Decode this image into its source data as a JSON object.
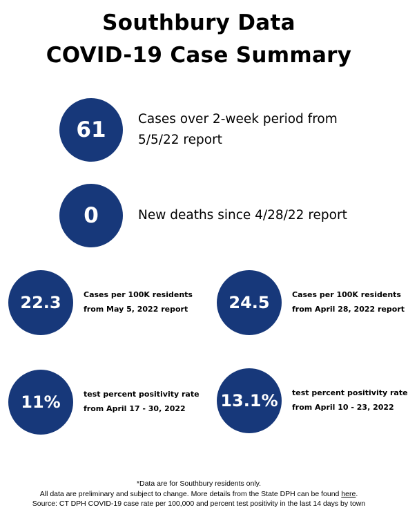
{
  "title": {
    "line1": "Southbury Data",
    "line2": "COVID-19 Case Summary"
  },
  "stats": {
    "cases": {
      "value": "61",
      "label_line1": "Cases over 2-week period from",
      "label_line2": "5/5/22 report"
    },
    "deaths": {
      "value": "0",
      "label": "New deaths since 4/28/22 report"
    },
    "rate_current": {
      "value": "22.3",
      "label_line1": "Cases per 100K residents",
      "label_line2": "from May 5, 2022 report"
    },
    "rate_previous": {
      "value": "24.5",
      "label_line1": "Cases per 100K residents",
      "label_line2": "from April 28, 2022 report"
    },
    "positivity_current": {
      "value": "11%",
      "label_line1": "test percent positivity rate",
      "label_line2": "from April 17 - 30, 2022"
    },
    "positivity_previous": {
      "value": "13.1%",
      "label_line1": "test percent positivity rate",
      "label_line2": "from April 10 - 23, 2022"
    }
  },
  "footer": {
    "line1": "*Data are for Southbury residents only.",
    "line2_prefix": "All data are preliminary and subject to change. More details from the State DPH can be found ",
    "line2_link": "here",
    "line2_suffix": ".",
    "line3": "Source: CT DPH COVID-19 case rate per 100,000 and percent test positivity in the last 14 days by town"
  },
  "colors": {
    "circle": "#17387a",
    "text": "#000000",
    "background": "#ffffff"
  }
}
